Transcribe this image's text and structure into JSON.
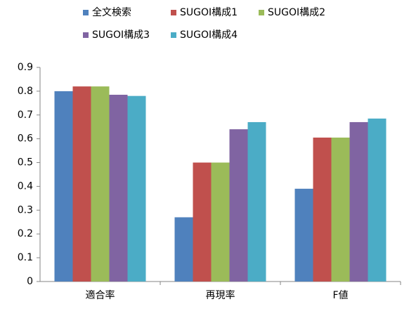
{
  "chart_data": {
    "type": "bar",
    "categories": [
      "適合率",
      "再現率",
      "F値"
    ],
    "series": [
      {
        "name": "全文検索",
        "color": "#4f81bd",
        "values": [
          0.8,
          0.27,
          0.39
        ]
      },
      {
        "name": "SUGOI構成1",
        "color": "#c0504d",
        "values": [
          0.82,
          0.5,
          0.605
        ]
      },
      {
        "name": "SUGOI構成2",
        "color": "#9bbb59",
        "values": [
          0.82,
          0.5,
          0.605
        ]
      },
      {
        "name": "SUGOI構成3",
        "color": "#8064a2",
        "values": [
          0.785,
          0.64,
          0.67
        ]
      },
      {
        "name": "SUGOI構成4",
        "color": "#4bacc6",
        "values": [
          0.78,
          0.67,
          0.685
        ]
      }
    ],
    "ylim": [
      0,
      0.9
    ],
    "yticks": [
      0,
      0.1,
      0.2,
      0.3,
      0.4,
      0.5,
      0.6,
      0.7,
      0.8,
      0.9
    ],
    "legend": "top"
  }
}
